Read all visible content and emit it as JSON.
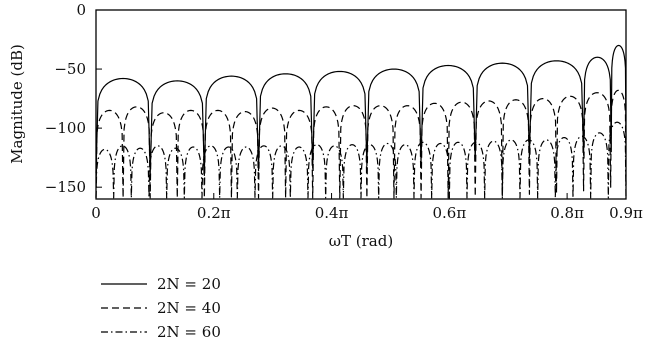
{
  "chart_data": {
    "type": "line",
    "xlabel": "ωT (rad)",
    "ylabel": "Magnitude (dB)",
    "xlim": [
      0,
      0.9
    ],
    "ylim": [
      -160,
      0
    ],
    "x_unit": "π rad",
    "x_ticks": [
      0,
      0.2,
      0.4,
      0.6,
      0.8,
      0.9
    ],
    "x_tick_labels": [
      "0",
      "0.2π",
      "0.4π",
      "0.6π",
      "0.8π",
      "0.9π"
    ],
    "y_ticks": [
      0,
      -50,
      -100,
      -150
    ],
    "y_tick_labels": [
      "0",
      "−50",
      "−100",
      "−150"
    ],
    "grid": false,
    "legend_position": "bottom-left, below plot",
    "series": [
      {
        "name": "2N = 20",
        "line_style": "solid",
        "color": "#000000",
        "lobe_edges": [
          0,
          0.092,
          0.184,
          0.276,
          0.368,
          0.46,
          0.552,
          0.644,
          0.736,
          0.828,
          0.875,
          0.9
        ],
        "lobe_peaks_db": [
          -58,
          -60,
          -56,
          -54,
          -52,
          -50,
          -47,
          -45,
          -43,
          -40,
          -30
        ]
      },
      {
        "name": "2N = 40",
        "line_style": "dashed",
        "color": "#000000",
        "lobe_edges": [
          0,
          0.046,
          0.092,
          0.138,
          0.184,
          0.23,
          0.276,
          0.322,
          0.368,
          0.414,
          0.46,
          0.506,
          0.552,
          0.598,
          0.644,
          0.69,
          0.736,
          0.782,
          0.828,
          0.874,
          0.9
        ],
        "lobe_peaks_db": [
          -85,
          -82,
          -87,
          -85,
          -85,
          -86,
          -83,
          -85,
          -82,
          -81,
          -81,
          -81,
          -79,
          -78,
          -77,
          -76,
          -75,
          -73,
          -70,
          -68
        ]
      },
      {
        "name": "2N = 60",
        "line_style": "dashdot",
        "color": "#000000",
        "lobe_edges": [
          0,
          0.03,
          0.06,
          0.09,
          0.12,
          0.15,
          0.18,
          0.21,
          0.24,
          0.27,
          0.3,
          0.33,
          0.36,
          0.39,
          0.42,
          0.45,
          0.48,
          0.51,
          0.54,
          0.57,
          0.6,
          0.63,
          0.66,
          0.69,
          0.72,
          0.75,
          0.78,
          0.81,
          0.84,
          0.87,
          0.9
        ],
        "lobe_peaks_db": [
          -118,
          -115,
          -117,
          -115,
          -117,
          -116,
          -115,
          -116,
          -116,
          -115,
          -115,
          -116,
          -114,
          -115,
          -114,
          -114,
          -113,
          -114,
          -112,
          -113,
          -112,
          -112,
          -111,
          -110,
          -110,
          -110,
          -108,
          -107,
          -104,
          -95
        ]
      }
    ]
  }
}
